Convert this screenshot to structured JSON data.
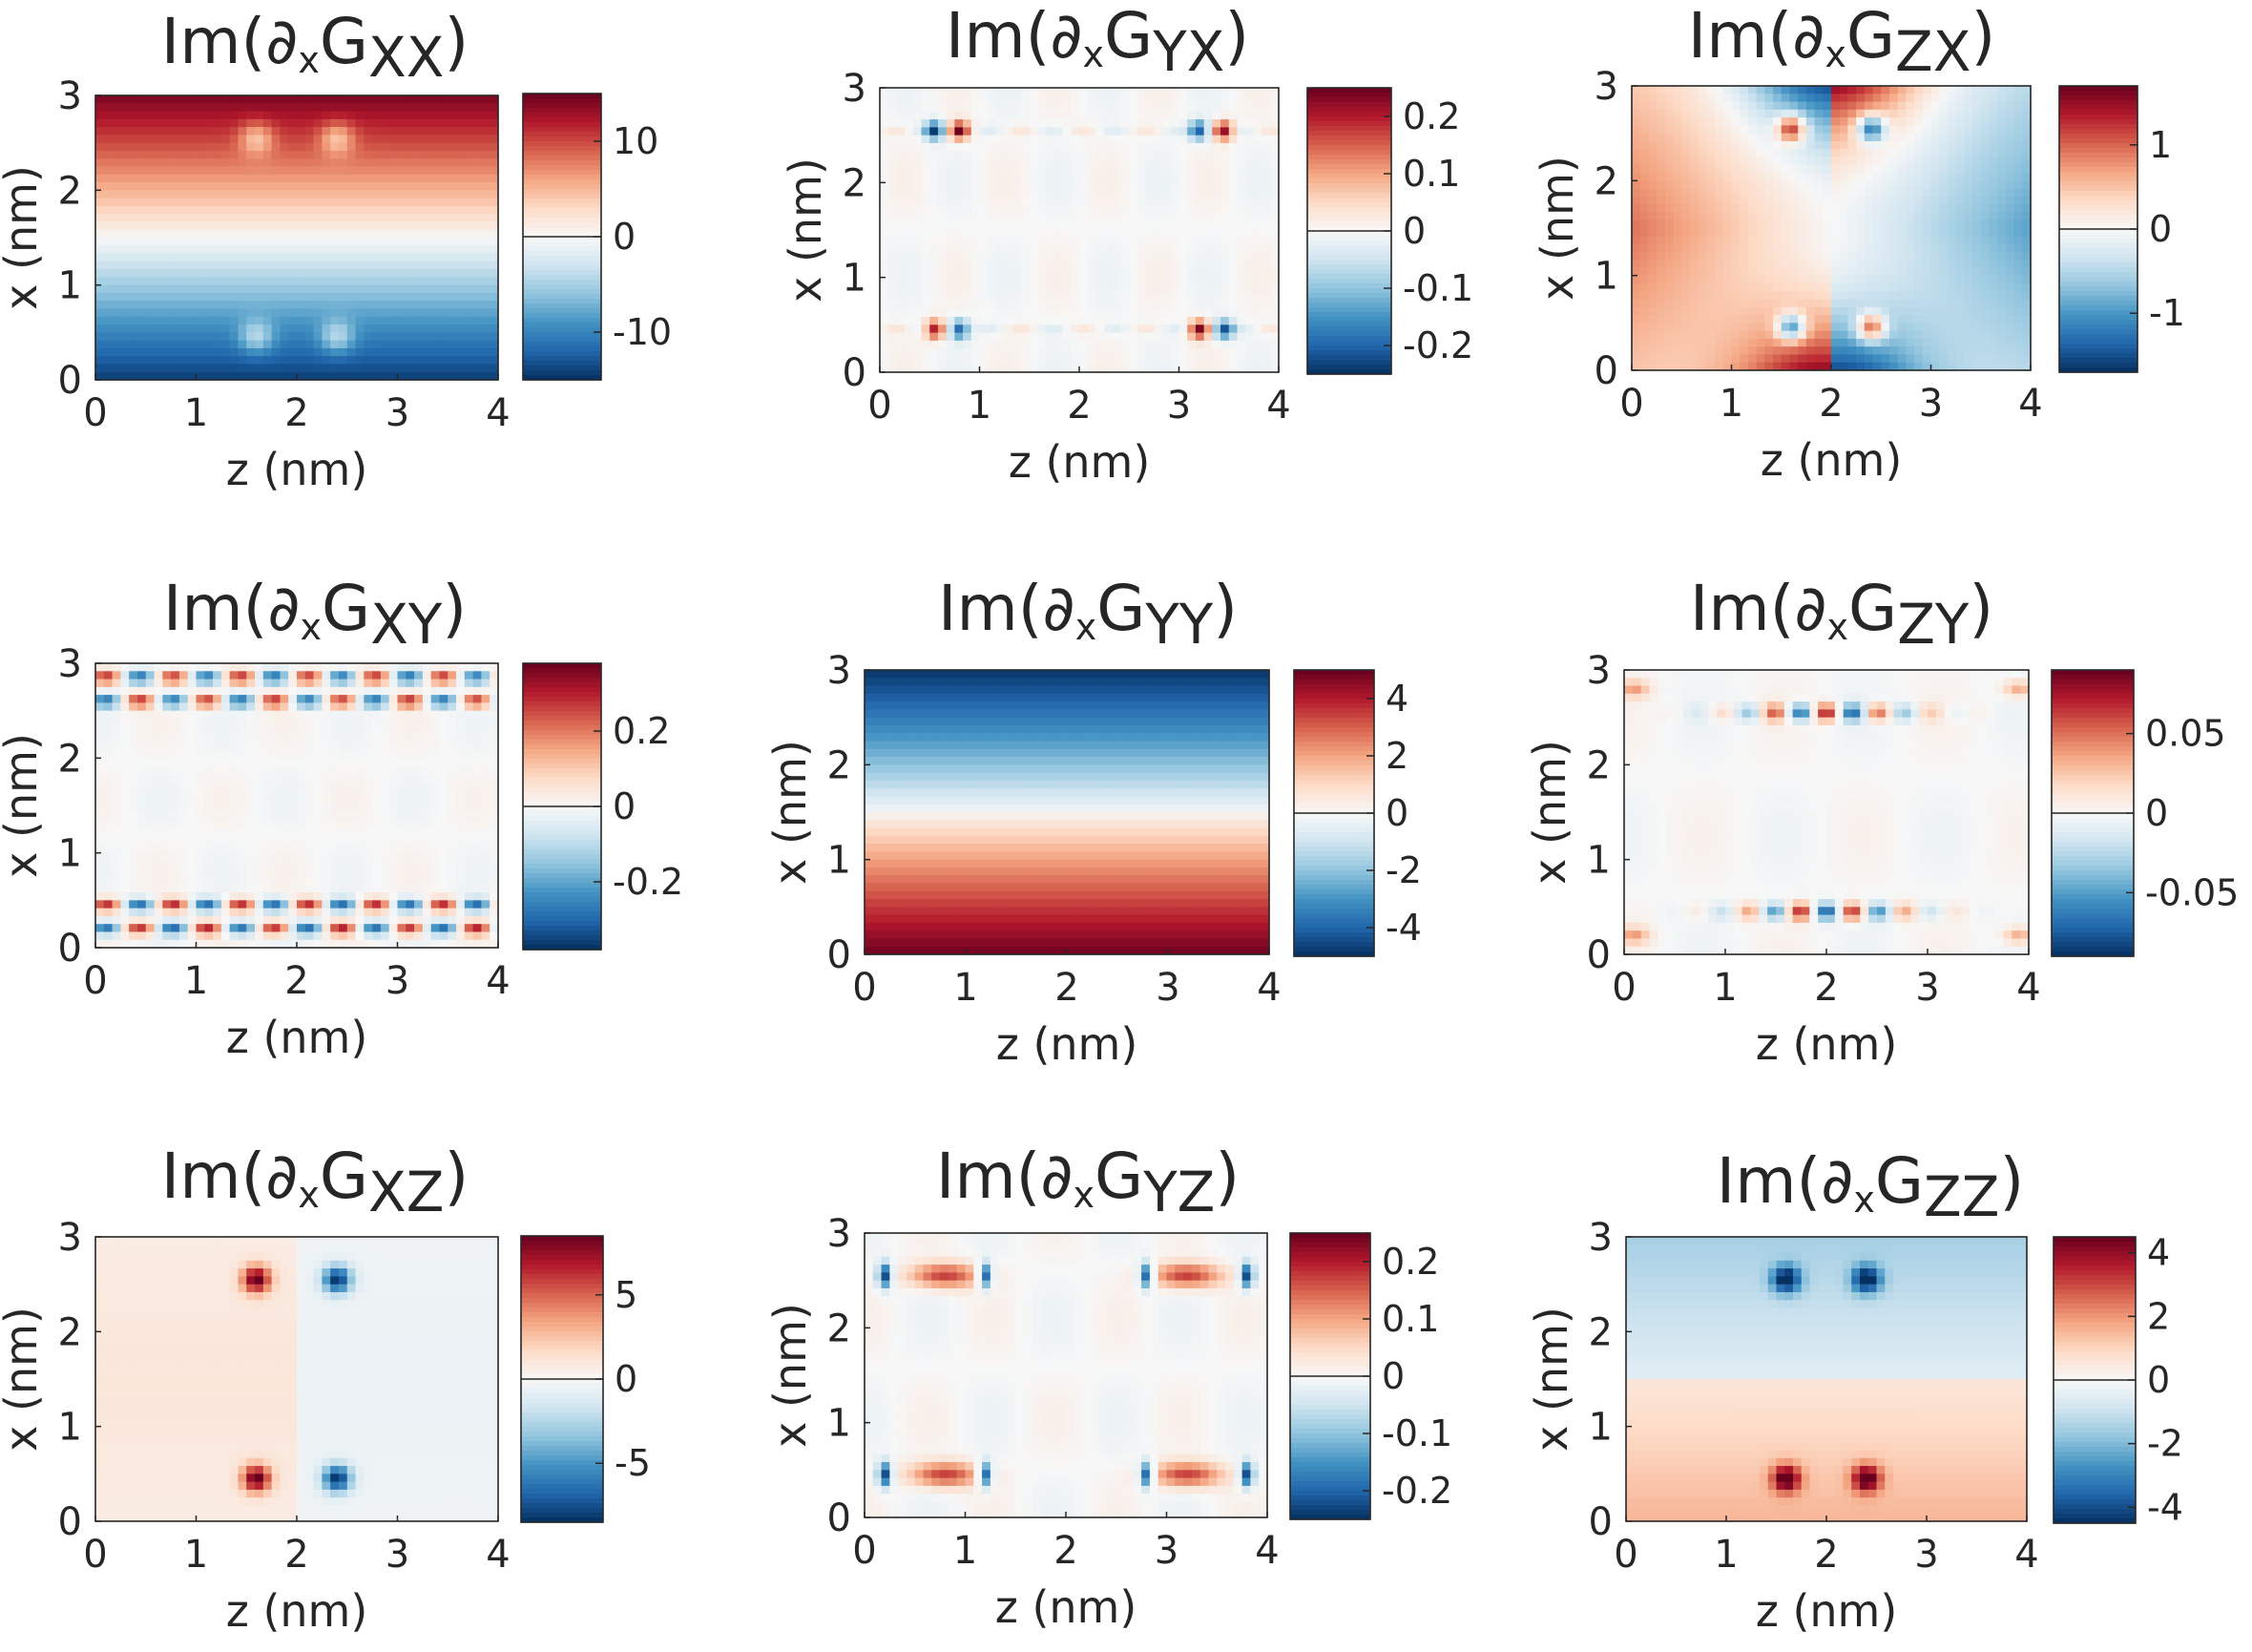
{
  "figure": {
    "description_free": true,
    "colormap": {
      "negative": "#08306b",
      "zero": "#ffffff",
      "positive": "#67000d",
      "stops": [
        "#053061",
        "#2166ac",
        "#4393c3",
        "#92c5de",
        "#d1e5f0",
        "#f7f7f7",
        "#fddbc7",
        "#f4a582",
        "#d6604d",
        "#b2182b",
        "#67001f"
      ]
    }
  },
  "chart_data": [
    {
      "type": "heatmap",
      "id": "xx",
      "title_prefix": "Im(∂",
      "title_sub": "x",
      "title_main": "G",
      "title_indices": "xx",
      "title_suffix": ")",
      "xlabel": "z (nm)",
      "ylabel": "x (nm)",
      "xlim": [
        0,
        4
      ],
      "ylim": [
        0,
        3
      ],
      "xticks": [
        "0",
        "1",
        "2",
        "3",
        "4"
      ],
      "yticks": [
        "0",
        "1",
        "2",
        "3"
      ],
      "clim": [
        -15,
        15
      ],
      "cbar_ticks": [
        {
          "value": 10,
          "label": "10"
        },
        {
          "value": 0,
          "label": "0"
        },
        {
          "value": -10,
          "label": "-10"
        }
      ],
      "pattern": "gradient-pos-top",
      "features": [
        {
          "z": 1.6,
          "x": 2.55,
          "amp": -6,
          "r": 0.12
        },
        {
          "z": 2.4,
          "x": 2.55,
          "amp": -6,
          "r": 0.12
        },
        {
          "z": 1.6,
          "x": 0.45,
          "amp": 6,
          "r": 0.12
        },
        {
          "z": 2.4,
          "x": 0.45,
          "amp": 6,
          "r": 0.12
        }
      ]
    },
    {
      "type": "heatmap",
      "id": "yx",
      "title_prefix": "Im(∂",
      "title_sub": "x",
      "title_main": "G",
      "title_indices": "yx",
      "title_suffix": ")",
      "xlabel": "z (nm)",
      "ylabel": "x (nm)",
      "xlim": [
        0,
        4
      ],
      "ylim": [
        0,
        3
      ],
      "xticks": [
        "0",
        "1",
        "2",
        "3",
        "4"
      ],
      "yticks": [
        "0",
        "1",
        "2",
        "3"
      ],
      "clim": [
        -0.25,
        0.25
      ],
      "cbar_ticks": [
        {
          "value": 0.2,
          "label": "0.2"
        },
        {
          "value": 0.1,
          "label": "0.1"
        },
        {
          "value": 0,
          "label": "0"
        },
        {
          "value": -0.1,
          "label": "-0.1"
        },
        {
          "value": -0.2,
          "label": "-0.2"
        }
      ],
      "pattern": "dipoles",
      "features": [
        {
          "z": 0.55,
          "x": 2.55,
          "amp": -0.22,
          "r": 0.07
        },
        {
          "z": 0.8,
          "x": 2.55,
          "amp": 0.22,
          "r": 0.07
        },
        {
          "z": 3.2,
          "x": 2.55,
          "amp": -0.22,
          "r": 0.07
        },
        {
          "z": 3.45,
          "x": 2.55,
          "amp": 0.22,
          "r": 0.07
        },
        {
          "z": 0.55,
          "x": 0.45,
          "amp": 0.22,
          "r": 0.07
        },
        {
          "z": 0.8,
          "x": 0.45,
          "amp": -0.22,
          "r": 0.07
        },
        {
          "z": 3.2,
          "x": 0.45,
          "amp": 0.22,
          "r": 0.07
        },
        {
          "z": 3.45,
          "x": 0.45,
          "amp": -0.22,
          "r": 0.07
        }
      ]
    },
    {
      "type": "heatmap",
      "id": "zx",
      "title_prefix": "Im(∂",
      "title_sub": "x",
      "title_main": "G",
      "title_indices": "zx",
      "title_suffix": ")",
      "xlabel": "z (nm)",
      "ylabel": "x (nm)",
      "xlim": [
        0,
        4
      ],
      "ylim": [
        0,
        3
      ],
      "xticks": [
        "0",
        "1",
        "2",
        "3",
        "4"
      ],
      "yticks": [
        "0",
        "1",
        "2",
        "3"
      ],
      "clim": [
        -1.7,
        1.7
      ],
      "cbar_ticks": [
        {
          "value": 1,
          "label": "1"
        },
        {
          "value": 0,
          "label": "0"
        },
        {
          "value": -1,
          "label": "-1"
        }
      ],
      "pattern": "bowtie",
      "features": [
        {
          "z": 1.6,
          "x": 2.55,
          "amp": 1.6,
          "r": 0.1
        },
        {
          "z": 2.4,
          "x": 2.55,
          "amp": -1.6,
          "r": 0.1
        },
        {
          "z": 1.6,
          "x": 0.45,
          "amp": -1.6,
          "r": 0.1
        },
        {
          "z": 2.4,
          "x": 0.45,
          "amp": 1.6,
          "r": 0.1
        }
      ]
    },
    {
      "type": "heatmap",
      "id": "xy",
      "title_prefix": "Im(∂",
      "title_sub": "x",
      "title_main": "G",
      "title_indices": "xy",
      "title_suffix": ")",
      "xlabel": "z (nm)",
      "ylabel": "x (nm)",
      "xlim": [
        0,
        4
      ],
      "ylim": [
        0,
        3
      ],
      "xticks": [
        "0",
        "1",
        "2",
        "3",
        "4"
      ],
      "yticks": [
        "0",
        "1",
        "2",
        "3"
      ],
      "clim": [
        -0.38,
        0.38
      ],
      "cbar_ticks": [
        {
          "value": 0.2,
          "label": "0.2"
        },
        {
          "value": 0,
          "label": "0"
        },
        {
          "value": -0.2,
          "label": "-0.2"
        }
      ],
      "pattern": "stripes-xy",
      "features": []
    },
    {
      "type": "heatmap",
      "id": "yy",
      "title_prefix": "Im(∂",
      "title_sub": "x",
      "title_main": "G",
      "title_indices": "yy",
      "title_suffix": ")",
      "xlabel": "z (nm)",
      "ylabel": "x (nm)",
      "xlim": [
        0,
        4
      ],
      "ylim": [
        0,
        3
      ],
      "xticks": [
        "0",
        "1",
        "2",
        "3",
        "4"
      ],
      "yticks": [
        "0",
        "1",
        "2",
        "3"
      ],
      "clim": [
        -5,
        5
      ],
      "cbar_ticks": [
        {
          "value": 4,
          "label": "4"
        },
        {
          "value": 2,
          "label": "2"
        },
        {
          "value": 0,
          "label": "0"
        },
        {
          "value": -2,
          "label": "-2"
        },
        {
          "value": -4,
          "label": "-4"
        }
      ],
      "pattern": "gradient-neg-top",
      "features": []
    },
    {
      "type": "heatmap",
      "id": "zy",
      "title_prefix": "Im(∂",
      "title_sub": "x",
      "title_main": "G",
      "title_indices": "zy",
      "title_suffix": ")",
      "xlabel": "z (nm)",
      "ylabel": "x (nm)",
      "xlim": [
        0,
        4
      ],
      "ylim": [
        0,
        3
      ],
      "xticks": [
        "0",
        "1",
        "2",
        "3",
        "4"
      ],
      "yticks": [
        "0",
        "1",
        "2",
        "3"
      ],
      "clim": [
        -0.09,
        0.09
      ],
      "cbar_ticks": [
        {
          "value": 0.05,
          "label": "0.05"
        },
        {
          "value": 0,
          "label": "0"
        },
        {
          "value": -0.05,
          "label": "-0.05"
        }
      ],
      "pattern": "row-dots-zy",
      "features": []
    },
    {
      "type": "heatmap",
      "id": "xz",
      "title_prefix": "Im(∂",
      "title_sub": "x",
      "title_main": "G",
      "title_indices": "xz",
      "title_suffix": ")",
      "xlabel": "z (nm)",
      "ylabel": "x (nm)",
      "xlim": [
        0,
        4
      ],
      "ylim": [
        0,
        3
      ],
      "xticks": [
        "0",
        "1",
        "2",
        "3",
        "4"
      ],
      "yticks": [
        "0",
        "1",
        "2",
        "3"
      ],
      "clim": [
        -8.5,
        8.5
      ],
      "cbar_ticks": [
        {
          "value": 5,
          "label": "5"
        },
        {
          "value": 0,
          "label": "0"
        },
        {
          "value": -5,
          "label": "-5"
        }
      ],
      "pattern": "split-lr",
      "features": [
        {
          "z": 1.6,
          "x": 2.55,
          "amp": 8,
          "r": 0.1
        },
        {
          "z": 2.4,
          "x": 2.55,
          "amp": -8,
          "r": 0.1
        },
        {
          "z": 1.6,
          "x": 0.45,
          "amp": 8,
          "r": 0.1
        },
        {
          "z": 2.4,
          "x": 0.45,
          "amp": -8,
          "r": 0.1
        }
      ]
    },
    {
      "type": "heatmap",
      "id": "yz",
      "title_prefix": "Im(∂",
      "title_sub": "x",
      "title_main": "G",
      "title_indices": "yz",
      "title_suffix": ")",
      "xlabel": "z (nm)",
      "ylabel": "x (nm)",
      "xlim": [
        0,
        4
      ],
      "ylim": [
        0,
        3
      ],
      "xticks": [
        "0",
        "1",
        "2",
        "3",
        "4"
      ],
      "yticks": [
        "0",
        "1",
        "2",
        "3"
      ],
      "clim": [
        -0.25,
        0.25
      ],
      "cbar_ticks": [
        {
          "value": 0.2,
          "label": "0.2"
        },
        {
          "value": 0.1,
          "label": "0.1"
        },
        {
          "value": 0,
          "label": "0"
        },
        {
          "value": -0.1,
          "label": "-0.1"
        },
        {
          "value": -0.2,
          "label": "-0.2"
        }
      ],
      "pattern": "bars-yz",
      "features": []
    },
    {
      "type": "heatmap",
      "id": "zz",
      "title_prefix": "Im(∂",
      "title_sub": "x",
      "title_main": "G",
      "title_indices": "zz",
      "title_suffix": ")",
      "xlabel": "z (nm)",
      "ylabel": "x (nm)",
      "xlim": [
        0,
        4
      ],
      "ylim": [
        0,
        3
      ],
      "xticks": [
        "0",
        "1",
        "2",
        "3",
        "4"
      ],
      "yticks": [
        "0",
        "1",
        "2",
        "3"
      ],
      "clim": [
        -4.5,
        4.5
      ],
      "cbar_ticks": [
        {
          "value": 4,
          "label": "4"
        },
        {
          "value": 2,
          "label": "2"
        },
        {
          "value": 0,
          "label": "0"
        },
        {
          "value": -2,
          "label": "-2"
        },
        {
          "value": -4,
          "label": "-4"
        }
      ],
      "pattern": "gradient-neg-top-soft",
      "features": [
        {
          "z": 1.6,
          "x": 2.55,
          "amp": -4,
          "r": 0.1
        },
        {
          "z": 2.4,
          "x": 2.55,
          "amp": -4,
          "r": 0.1
        },
        {
          "z": 1.6,
          "x": 0.45,
          "amp": 4,
          "r": 0.1
        },
        {
          "z": 2.4,
          "x": 0.45,
          "amp": 4,
          "r": 0.1
        }
      ]
    }
  ]
}
